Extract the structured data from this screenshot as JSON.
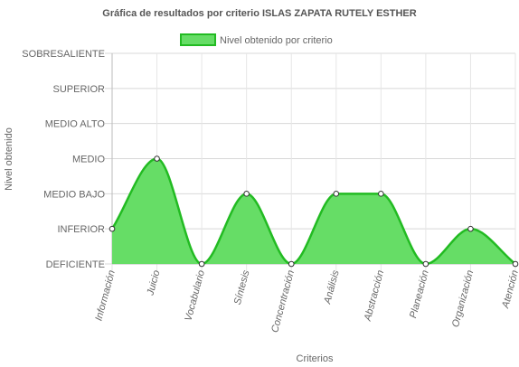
{
  "chart_data": {
    "type": "area",
    "title": "Gráfica de resultados por criterio ISLAS ZAPATA RUTELY ESTHER",
    "xlabel": "Criterios",
    "ylabel": "Nivel obtenido",
    "categories": [
      "Información",
      "Juicio",
      "Vocabulario",
      "Síntesis",
      "Concentración",
      "Análisis",
      "Abstracción",
      "Planeación",
      "Organización",
      "Atención"
    ],
    "y_levels": [
      "DEFICIENTE",
      "INFERIOR",
      "MEDIO BAJO",
      "MEDIO",
      "MEDIO ALTO",
      "SUPERIOR",
      "SOBRESALIENTE"
    ],
    "ylim": [
      0,
      6
    ],
    "series": [
      {
        "name": "Nivel obtenido por criterio",
        "values": [
          1,
          3,
          0,
          2,
          0,
          2,
          2,
          0,
          1,
          0
        ],
        "fill_color": "#66dd66",
        "line_color": "#22bb22"
      }
    ],
    "grid": true,
    "legend": "top"
  }
}
